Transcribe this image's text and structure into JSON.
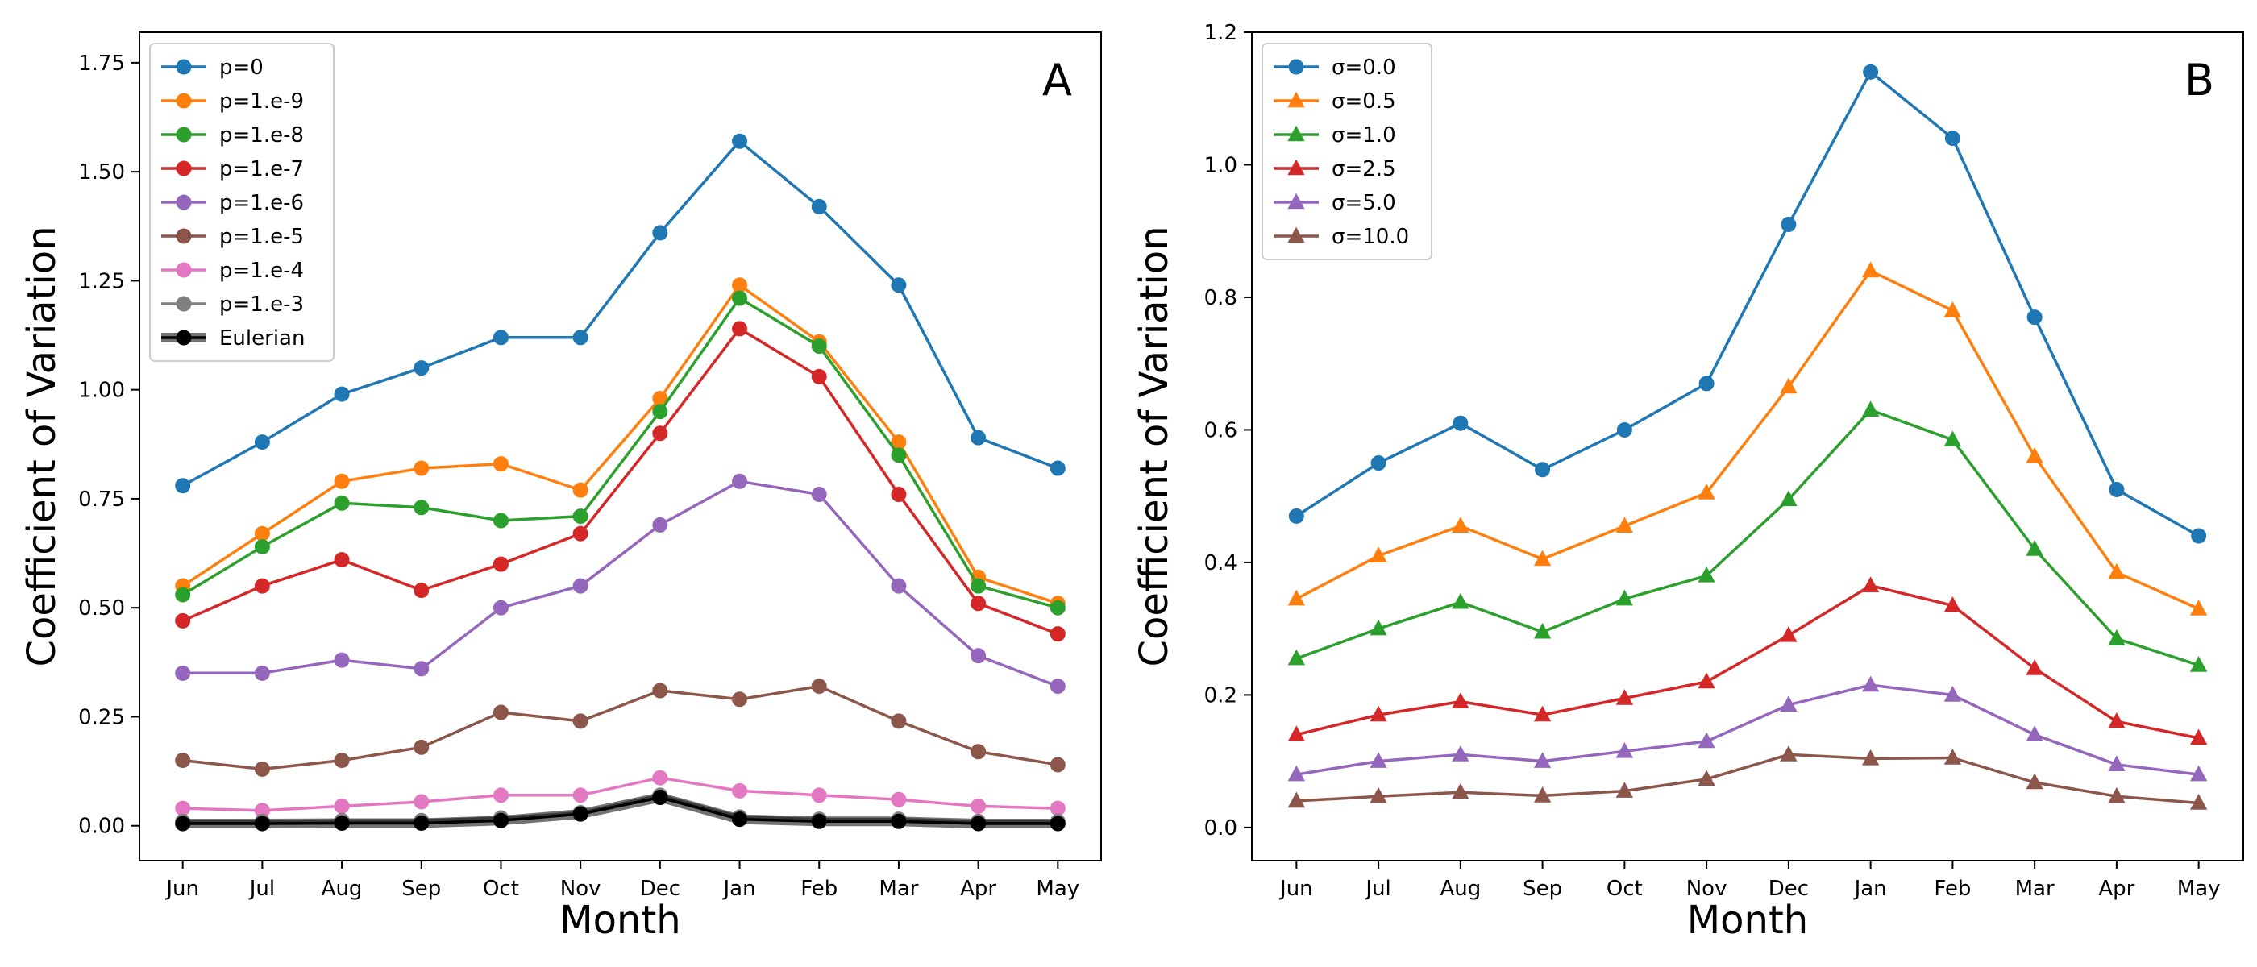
{
  "chart_data": [
    {
      "type": "line",
      "panel_label": "A",
      "xlabel": "Month",
      "ylabel": "Coefficient of Variation",
      "categories": [
        "Jun",
        "Jul",
        "Aug",
        "Sep",
        "Oct",
        "Nov",
        "Dec",
        "Jan",
        "Feb",
        "Mar",
        "Apr",
        "May"
      ],
      "ylim": [
        -0.08,
        1.82
      ],
      "yticks": [
        "0.00",
        "0.25",
        "0.50",
        "0.75",
        "1.00",
        "1.25",
        "1.50",
        "1.75"
      ],
      "grid": false,
      "legend_position": "top-left",
      "series": [
        {
          "name": "p=0",
          "color": "#1f77b4",
          "marker": "circle",
          "values": [
            0.78,
            0.88,
            0.99,
            1.05,
            1.12,
            1.12,
            1.36,
            1.57,
            1.42,
            1.24,
            0.89,
            0.82
          ]
        },
        {
          "name": "p=1.e-9",
          "color": "#ff7f0e",
          "marker": "circle",
          "values": [
            0.55,
            0.67,
            0.79,
            0.82,
            0.83,
            0.77,
            0.98,
            1.24,
            1.11,
            0.88,
            0.57,
            0.51
          ]
        },
        {
          "name": "p=1.e-8",
          "color": "#2ca02c",
          "marker": "circle",
          "values": [
            0.53,
            0.64,
            0.74,
            0.73,
            0.7,
            0.71,
            0.95,
            1.21,
            1.1,
            0.85,
            0.55,
            0.5
          ]
        },
        {
          "name": "p=1.e-7",
          "color": "#d62728",
          "marker": "circle",
          "values": [
            0.47,
            0.55,
            0.61,
            0.54,
            0.6,
            0.67,
            0.9,
            1.14,
            1.03,
            0.76,
            0.51,
            0.44
          ]
        },
        {
          "name": "p=1.e-6",
          "color": "#9467bd",
          "marker": "circle",
          "values": [
            0.35,
            0.35,
            0.38,
            0.36,
            0.5,
            0.55,
            0.69,
            0.79,
            0.76,
            0.55,
            0.39,
            0.32
          ]
        },
        {
          "name": "p=1.e-5",
          "color": "#8c564b",
          "marker": "circle",
          "values": [
            0.15,
            0.13,
            0.15,
            0.18,
            0.26,
            0.24,
            0.31,
            0.29,
            0.32,
            0.24,
            0.17,
            0.14
          ]
        },
        {
          "name": "p=1.e-4",
          "color": "#e377c2",
          "marker": "circle",
          "values": [
            0.04,
            0.035,
            0.045,
            0.055,
            0.07,
            0.07,
            0.11,
            0.08,
            0.07,
            0.06,
            0.045,
            0.04
          ]
        },
        {
          "name": "p=1.e-3",
          "color": "#7f7f7f",
          "marker": "circle",
          "values": [
            0.01,
            0.01,
            0.012,
            0.012,
            0.018,
            0.03,
            0.07,
            0.02,
            0.015,
            0.015,
            0.01,
            0.01
          ]
        },
        {
          "name": "Eulerian",
          "color": "#000000",
          "marker": "circle",
          "thick": true,
          "values": [
            0.005,
            0.005,
            0.006,
            0.006,
            0.012,
            0.027,
            0.065,
            0.015,
            0.01,
            0.01,
            0.005,
            0.005
          ]
        }
      ]
    },
    {
      "type": "line",
      "panel_label": "B",
      "xlabel": "Month",
      "ylabel": "Coefficient of Variation",
      "categories": [
        "Jun",
        "Jul",
        "Aug",
        "Sep",
        "Oct",
        "Nov",
        "Dec",
        "Jan",
        "Feb",
        "Mar",
        "Apr",
        "May"
      ],
      "ylim": [
        -0.05,
        1.2
      ],
      "yticks": [
        "0.0",
        "0.2",
        "0.4",
        "0.6",
        "0.8",
        "1.0",
        "1.2"
      ],
      "grid": false,
      "legend_position": "top-left",
      "series": [
        {
          "name": "σ=0.0",
          "color": "#1f77b4",
          "marker": "circle",
          "values": [
            0.47,
            0.55,
            0.61,
            0.54,
            0.6,
            0.67,
            0.91,
            1.14,
            1.04,
            0.77,
            0.51,
            0.44
          ]
        },
        {
          "name": "σ=0.5",
          "color": "#ff7f0e",
          "marker": "triangle",
          "values": [
            0.345,
            0.41,
            0.455,
            0.405,
            0.455,
            0.505,
            0.665,
            0.84,
            0.78,
            0.56,
            0.385,
            0.33
          ]
        },
        {
          "name": "σ=1.0",
          "color": "#2ca02c",
          "marker": "triangle",
          "values": [
            0.255,
            0.3,
            0.34,
            0.295,
            0.345,
            0.38,
            0.495,
            0.63,
            0.585,
            0.42,
            0.285,
            0.245
          ]
        },
        {
          "name": "σ=2.5",
          "color": "#d62728",
          "marker": "triangle",
          "values": [
            0.14,
            0.17,
            0.19,
            0.17,
            0.195,
            0.22,
            0.29,
            0.365,
            0.335,
            0.24,
            0.16,
            0.135
          ]
        },
        {
          "name": "σ=5.0",
          "color": "#9467bd",
          "marker": "triangle",
          "values": [
            0.08,
            0.1,
            0.11,
            0.1,
            0.115,
            0.13,
            0.185,
            0.215,
            0.2,
            0.14,
            0.095,
            0.08
          ]
        },
        {
          "name": "σ=10.0",
          "color": "#8c564b",
          "marker": "triangle",
          "values": [
            0.04,
            0.047,
            0.053,
            0.048,
            0.055,
            0.073,
            0.11,
            0.104,
            0.105,
            0.068,
            0.047,
            0.037
          ]
        }
      ]
    }
  ]
}
